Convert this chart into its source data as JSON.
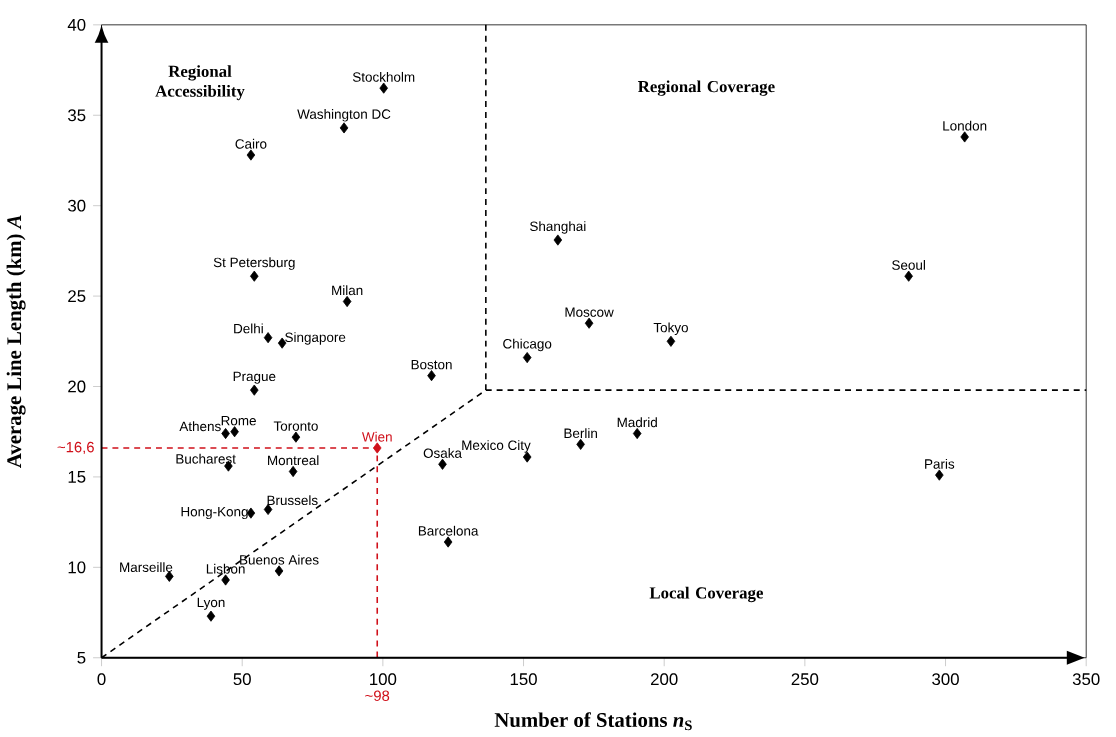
{
  "chart_data": {
    "type": "scatter",
    "xlabel": "Number of Stations *n*$_{S}$",
    "ylabel": "Average Line Length (km) *A*",
    "xlim": [
      0,
      350
    ],
    "ylim": [
      5,
      40
    ],
    "xticks": [
      0,
      50,
      100,
      150,
      200,
      250,
      300,
      350
    ],
    "yticks": [
      5,
      10,
      15,
      20,
      25,
      30,
      35,
      40
    ],
    "marker": "diamond",
    "annotations": [
      "Regional Accessibility",
      "Regional Coverage",
      "Local Coverage",
      {
        "text": "~16,6",
        "x": 0,
        "y": 16.6
      },
      {
        "text": "~98",
        "x": 98,
        "y": 5
      }
    ],
    "series": [
      {
        "name": "Stockholm",
        "color": "#000000",
        "x": [
          100.3
        ],
        "values": [
          36.5
        ]
      },
      {
        "name": "Washington DC",
        "color": "#000000",
        "x": [
          86.2
        ],
        "values": [
          34.3
        ]
      },
      {
        "name": "Cairo",
        "color": "#000000",
        "x": [
          53.1
        ],
        "values": [
          32.8
        ]
      },
      {
        "name": "St Petersburg",
        "color": "#000000",
        "x": [
          54.3
        ],
        "values": [
          26.1
        ]
      },
      {
        "name": "Milan",
        "color": "#000000",
        "x": [
          87.3
        ],
        "values": [
          24.7
        ]
      },
      {
        "name": "Delhi",
        "color": "#000000",
        "x": [
          59.2
        ],
        "values": [
          22.7
        ]
      },
      {
        "name": "Singapore",
        "color": "#000000",
        "x": [
          64.2
        ],
        "values": [
          22.4
        ]
      },
      {
        "name": "Boston",
        "color": "#000000",
        "x": [
          117.3
        ],
        "values": [
          20.6
        ]
      },
      {
        "name": "Prague",
        "color": "#000000",
        "x": [
          54.3
        ],
        "values": [
          19.8
        ]
      },
      {
        "name": "Athens",
        "color": "#000000",
        "x": [
          44.1
        ],
        "values": [
          17.4
        ]
      },
      {
        "name": "Rome",
        "color": "#000000",
        "x": [
          47.3
        ],
        "values": [
          17.5
        ]
      },
      {
        "name": "Toronto",
        "color": "#000000",
        "x": [
          69.1
        ],
        "values": [
          17.2
        ]
      },
      {
        "name": "Bucharest",
        "color": "#000000",
        "x": [
          45.1
        ],
        "values": [
          15.6
        ]
      },
      {
        "name": "Montreal",
        "color": "#000000",
        "x": [
          68.1
        ],
        "values": [
          15.3
        ]
      },
      {
        "name": "Wien",
        "color": "#d0101a",
        "x": [
          98
        ],
        "values": [
          16.6
        ]
      },
      {
        "name": "Osaka",
        "color": "#000000",
        "x": [
          121.2
        ],
        "values": [
          15.7
        ]
      },
      {
        "name": "Hong-Kong",
        "color": "#000000",
        "x": [
          53.1
        ],
        "values": [
          13.0
        ]
      },
      {
        "name": "Brussels",
        "color": "#000000",
        "x": [
          59.2
        ],
        "values": [
          13.2
        ]
      },
      {
        "name": "Barcelona",
        "color": "#000000",
        "x": [
          123.2
        ],
        "values": [
          11.4
        ]
      },
      {
        "name": "Marseille",
        "color": "#000000",
        "x": [
          24.1
        ],
        "values": [
          9.5
        ]
      },
      {
        "name": "Lisbon",
        "color": "#000000",
        "x": [
          44.1
        ],
        "values": [
          9.3
        ]
      },
      {
        "name": "Buenos Aires",
        "color": "#000000",
        "x": [
          63.1
        ],
        "values": [
          9.8
        ]
      },
      {
        "name": "Lyon",
        "color": "#000000",
        "x": [
          38.9
        ],
        "values": [
          7.3
        ]
      },
      {
        "name": "London",
        "color": "#000000",
        "x": [
          306.8
        ],
        "values": [
          33.8
        ]
      },
      {
        "name": "Shanghai",
        "color": "#000000",
        "x": [
          162.2
        ],
        "values": [
          28.1
        ]
      },
      {
        "name": "Seoul",
        "color": "#000000",
        "x": [
          286.9
        ],
        "values": [
          26.1
        ]
      },
      {
        "name": "Moscow",
        "color": "#000000",
        "x": [
          173.3
        ],
        "values": [
          23.5
        ]
      },
      {
        "name": "Tokyo",
        "color": "#000000",
        "x": [
          202.4
        ],
        "values": [
          22.5
        ]
      },
      {
        "name": "Chicago",
        "color": "#000000",
        "x": [
          151.3
        ],
        "values": [
          21.6
        ]
      },
      {
        "name": "Madrid",
        "color": "#000000",
        "x": [
          190.4
        ],
        "values": [
          17.4
        ]
      },
      {
        "name": "Berlin",
        "color": "#000000",
        "x": [
          170.3
        ],
        "values": [
          16.8
        ]
      },
      {
        "name": "Mexico City",
        "color": "#000000",
        "x": [
          151.3
        ],
        "values": [
          16.1
        ]
      },
      {
        "name": "Paris",
        "color": "#000000",
        "x": [
          297.8
        ],
        "values": [
          15.1
        ]
      },
      {
        "type": "line",
        "marker": "none",
        "line_style": "dashed",
        "color": "#000000",
        "x": [
          0,
          136.6,
          350
        ],
        "values": [
          5,
          19.8,
          19.8
        ]
      },
      {
        "type": "line",
        "marker": "none",
        "line_style": "dashed",
        "color": "#000000",
        "x": [
          136.6,
          136.6
        ],
        "values": [
          19.8,
          40
        ]
      },
      {
        "type": "line",
        "marker": "none",
        "line_style": "dashed",
        "color": "#d0101a",
        "x": [
          0,
          98,
          98
        ],
        "values": [
          16.6,
          16.6,
          5
        ]
      }
    ]
  }
}
